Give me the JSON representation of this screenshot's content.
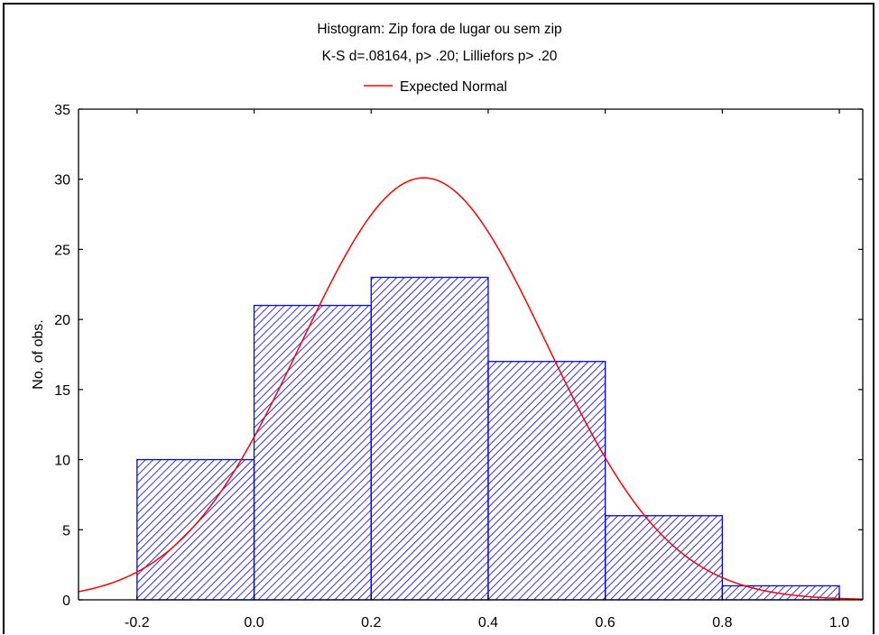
{
  "chart_data": {
    "type": "bar",
    "title": "Histogram: Zip fora de lugar ou sem zip",
    "subtitle": "K-S d=.08164, p> .20; Lilliefors p> .20",
    "xlabel": "",
    "ylabel": "No. of obs.",
    "legend": {
      "position": "top-center",
      "entries": [
        {
          "name": "Expected Normal",
          "color": "#ff0000",
          "kind": "line"
        }
      ]
    },
    "xlim": [
      -0.3,
      1.04
    ],
    "ylim": [
      0,
      35
    ],
    "xticks": [
      "-0.2",
      "0.0",
      "0.2",
      "0.4",
      "0.6",
      "0.8",
      "1.0"
    ],
    "yticks": [
      "0",
      "5",
      "10",
      "15",
      "20",
      "25",
      "30",
      "35"
    ],
    "bins": [
      {
        "x0": -0.2,
        "x1": 0.0,
        "value": 10
      },
      {
        "x0": 0.0,
        "x1": 0.2,
        "value": 21
      },
      {
        "x0": 0.2,
        "x1": 0.4,
        "value": 23
      },
      {
        "x0": 0.4,
        "x1": 0.6,
        "value": 17
      },
      {
        "x0": 0.6,
        "x1": 0.8,
        "value": 6
      },
      {
        "x0": 0.8,
        "x1": 1.0,
        "value": 1
      }
    ],
    "normal_curve": {
      "name": "Expected Normal",
      "mean": 0.29,
      "sd": 0.2101,
      "peak": 30.1,
      "x_range": [
        -0.3,
        1.04
      ]
    },
    "colors": {
      "bar": "#0000ff",
      "curve": "#ff0000",
      "axes": "#000000"
    },
    "grid": false
  }
}
